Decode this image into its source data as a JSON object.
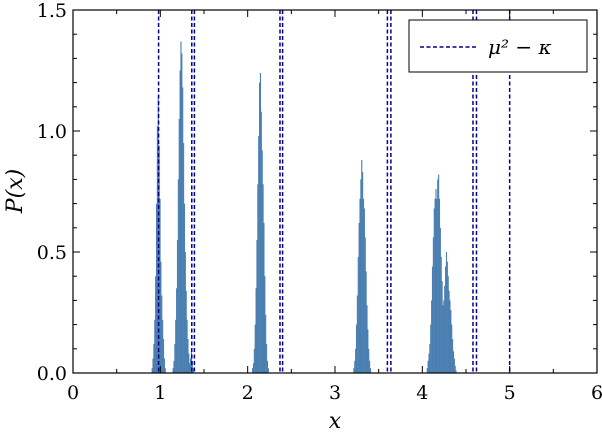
{
  "chart_data": {
    "type": "bar",
    "xlabel": "x",
    "ylabel": "P(x)",
    "xlim": [
      0,
      6
    ],
    "ylim": [
      0,
      1.5
    ],
    "xticks": [
      "0",
      "1",
      "2",
      "3",
      "4",
      "5",
      "6"
    ],
    "yticks": [
      "0.0",
      "0.5",
      "1.0",
      "1.5"
    ],
    "grid": false,
    "legend": {
      "placement": "top-right",
      "entries": [
        {
          "label": "μ² − κ",
          "style": "dashed",
          "color": "#00008b"
        }
      ]
    },
    "bar_color": "#4a7fb0",
    "bins": {
      "start": 0.9,
      "step": 0.01,
      "values": [
        0.02,
        0.06,
        0.12,
        0.22,
        0.4,
        0.7,
        1.02,
        1.14,
        0.94,
        0.72,
        0.46,
        0.32,
        0.22,
        0.14,
        0.06,
        0.02,
        0,
        0,
        0,
        0,
        0,
        0,
        0,
        0,
        0.02,
        0.05,
        0.12,
        0.22,
        0.35,
        0.55,
        0.8,
        1.05,
        1.25,
        1.37,
        1.32,
        1.18,
        0.95,
        0.7,
        0.5,
        0.34,
        0.22,
        0.14,
        0.08,
        0.04,
        0.06,
        0.1,
        0.05,
        0.02,
        0,
        0,
        0,
        0,
        0,
        0,
        0,
        0,
        0,
        0,
        0,
        0,
        0,
        0,
        0,
        0,
        0,
        0,
        0,
        0,
        0,
        0,
        0,
        0,
        0,
        0,
        0,
        0,
        0,
        0,
        0,
        0,
        0,
        0,
        0,
        0,
        0,
        0,
        0,
        0,
        0,
        0,
        0,
        0,
        0,
        0,
        0,
        0,
        0,
        0,
        0,
        0,
        0,
        0,
        0,
        0,
        0,
        0,
        0,
        0,
        0,
        0,
        0,
        0,
        0,
        0,
        0,
        0.02,
        0.04,
        0.1,
        0.2,
        0.35,
        0.55,
        0.78,
        0.98,
        1.2,
        1.24,
        1.08,
        0.92,
        0.78,
        0.62,
        0.4,
        0.24,
        0.12,
        0.05,
        0.02,
        0,
        0,
        0,
        0,
        0,
        0,
        0,
        0,
        0,
        0,
        0,
        0,
        0,
        0,
        0,
        0,
        0,
        0,
        0,
        0,
        0,
        0,
        0,
        0,
        0,
        0,
        0,
        0,
        0,
        0,
        0,
        0,
        0,
        0,
        0,
        0,
        0,
        0,
        0,
        0,
        0,
        0,
        0,
        0,
        0,
        0,
        0,
        0,
        0,
        0,
        0,
        0,
        0,
        0,
        0,
        0,
        0,
        0,
        0,
        0,
        0,
        0,
        0,
        0,
        0,
        0,
        0,
        0,
        0,
        0,
        0,
        0,
        0,
        0,
        0,
        0,
        0,
        0,
        0,
        0,
        0,
        0,
        0,
        0,
        0,
        0,
        0,
        0,
        0,
        0,
        0,
        0,
        0,
        0,
        0,
        0,
        0,
        0.02,
        0.05,
        0.1,
        0.2,
        0.32,
        0.48,
        0.62,
        0.72,
        0.8,
        0.88,
        0.83,
        0.72,
        0.68,
        0.56,
        0.42,
        0.28,
        0.18,
        0.1,
        0.05,
        0.02,
        0,
        0,
        0,
        0,
        0,
        0,
        0,
        0,
        0,
        0,
        0,
        0,
        0,
        0,
        0,
        0,
        0,
        0,
        0,
        0,
        0,
        0,
        0,
        0,
        0,
        0,
        0,
        0,
        0,
        0,
        0,
        0,
        0,
        0,
        0,
        0,
        0,
        0,
        0,
        0,
        0,
        0,
        0,
        0,
        0,
        0,
        0,
        0,
        0,
        0,
        0,
        0,
        0,
        0,
        0,
        0,
        0,
        0,
        0,
        0,
        0,
        0,
        0,
        0,
        0.02,
        0.05,
        0.08,
        0.12,
        0.2,
        0.3,
        0.44,
        0.56,
        0.68,
        0.72,
        0.76,
        0.72,
        0.8,
        0.82,
        0.72,
        0.6,
        0.48,
        0.38,
        0.28,
        0.3,
        0.36,
        0.44,
        0.5,
        0.46,
        0.4,
        0.34,
        0.3,
        0.26,
        0.2,
        0.14,
        0.09,
        0.06,
        0.03,
        0.01,
        0,
        0,
        0,
        0,
        0,
        0,
        0,
        0,
        0,
        0,
        0
      ]
    },
    "vlines": [
      0.98,
      1.36,
      1.39,
      2.37,
      2.4,
      3.6,
      3.64,
      4.58,
      4.62,
      5.0
    ]
  }
}
